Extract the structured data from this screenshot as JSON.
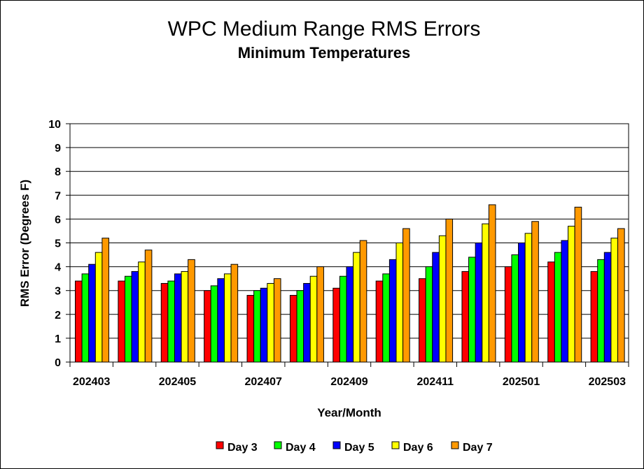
{
  "chart_data": {
    "type": "bar",
    "title": "WPC Medium Range RMS Errors",
    "subtitle": "Minimum Temperatures",
    "xlabel": "Year/Month",
    "ylabel": "RMS Error (Degrees F)",
    "ylim": [
      0,
      10
    ],
    "yticks": [
      "0",
      "1",
      "2",
      "3",
      "4",
      "5",
      "6",
      "7",
      "8",
      "9",
      "10"
    ],
    "grid": true,
    "legend_position": "bottom",
    "categories": [
      "202403",
      "202404",
      "202405",
      "202406",
      "202407",
      "202408",
      "202409",
      "202410",
      "202411",
      "202412",
      "202501",
      "202502",
      "202503"
    ],
    "x_tick_labels": [
      "202403",
      "",
      "202405",
      "",
      "202407",
      "",
      "202409",
      "",
      "202411",
      "",
      "202501",
      "",
      "202503"
    ],
    "series": [
      {
        "name": "Day 3",
        "color": "#ff0000",
        "values": [
          3.4,
          3.4,
          3.3,
          3.0,
          2.8,
          2.8,
          3.1,
          3.4,
          3.5,
          3.8,
          4.0,
          4.2,
          3.8
        ]
      },
      {
        "name": "Day 4",
        "color": "#00ff00",
        "values": [
          3.7,
          3.6,
          3.4,
          3.2,
          3.0,
          3.0,
          3.6,
          3.7,
          4.0,
          4.4,
          4.5,
          4.6,
          4.3
        ]
      },
      {
        "name": "Day 5",
        "color": "#0000ff",
        "values": [
          4.1,
          3.8,
          3.7,
          3.5,
          3.1,
          3.3,
          4.0,
          4.3,
          4.6,
          5.0,
          5.0,
          5.1,
          4.6
        ]
      },
      {
        "name": "Day 6",
        "color": "#ffff00",
        "values": [
          4.6,
          4.2,
          3.8,
          3.7,
          3.3,
          3.6,
          4.6,
          5.0,
          5.3,
          5.8,
          5.4,
          5.7,
          5.2
        ]
      },
      {
        "name": "Day 7",
        "color": "#ff9900",
        "values": [
          5.2,
          4.7,
          4.3,
          4.1,
          3.5,
          4.0,
          5.1,
          5.6,
          6.0,
          6.6,
          5.9,
          6.5,
          5.6
        ]
      }
    ]
  }
}
